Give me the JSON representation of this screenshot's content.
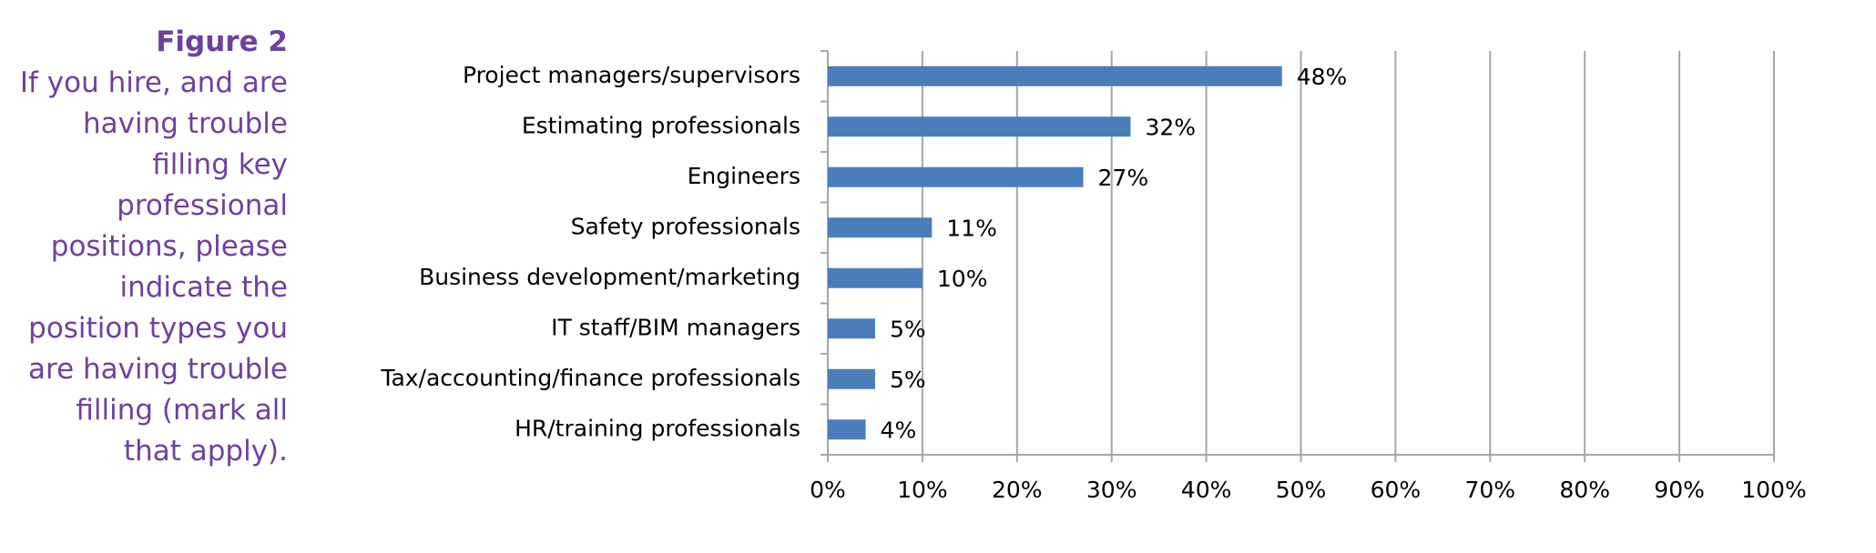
{
  "figure_label": "Figure 2",
  "caption": "If you hire, and are having trouble filling key professional positions, please indicate the position types you are having trouble filling (mark all that apply).",
  "chart_data": {
    "type": "bar",
    "orientation": "horizontal",
    "categories": [
      "Project managers/supervisors",
      "Estimating professionals",
      "Engineers",
      "Safety professionals",
      "Business development/marketing",
      "IT staff/BIM managers",
      "Tax/accounting/finance professionals",
      "HR/training professionals"
    ],
    "values": [
      48,
      32,
      27,
      11,
      10,
      5,
      5,
      4
    ],
    "value_labels": [
      "48%",
      "32%",
      "27%",
      "11%",
      "10%",
      "5%",
      "5%",
      "4%"
    ],
    "color": "#4a7ebb",
    "xlim": [
      0,
      100
    ],
    "xticks": [
      {
        "value": 0,
        "label": "0%"
      },
      {
        "value": 10,
        "label": "10%"
      },
      {
        "value": 20,
        "label": "20%"
      },
      {
        "value": 30,
        "label": "30%"
      },
      {
        "value": 40,
        "label": "40%"
      },
      {
        "value": 50,
        "label": "50%"
      },
      {
        "value": 60,
        "label": "60%"
      },
      {
        "value": 70,
        "label": "70%"
      },
      {
        "value": 80,
        "label": "80%"
      },
      {
        "value": 90,
        "label": "90%"
      },
      {
        "value": 100,
        "label": "100%"
      }
    ],
    "grid": true
  }
}
